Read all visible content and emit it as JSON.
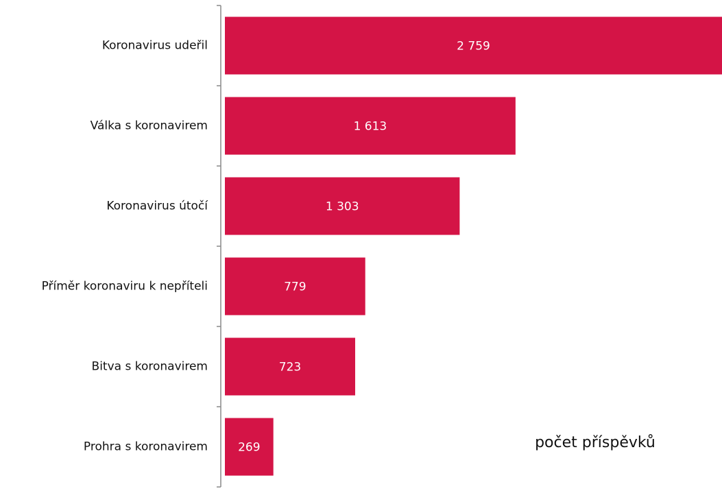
{
  "chart_data": {
    "type": "barh",
    "categories": [
      "Koronavirus udeřil",
      "Válka s koronavirem",
      "Koronavirus útočí",
      "Příměr koronaviru k nepříteli",
      "Bitva s koronavirem",
      "Prohra s koronavirem"
    ],
    "values": [
      2759,
      1613,
      1303,
      779,
      723,
      269
    ],
    "value_labels": [
      "2 759",
      "1 613",
      "1 303",
      "779",
      "723",
      "269"
    ],
    "color": "#d41446",
    "annotation": "počet příspěvků"
  }
}
